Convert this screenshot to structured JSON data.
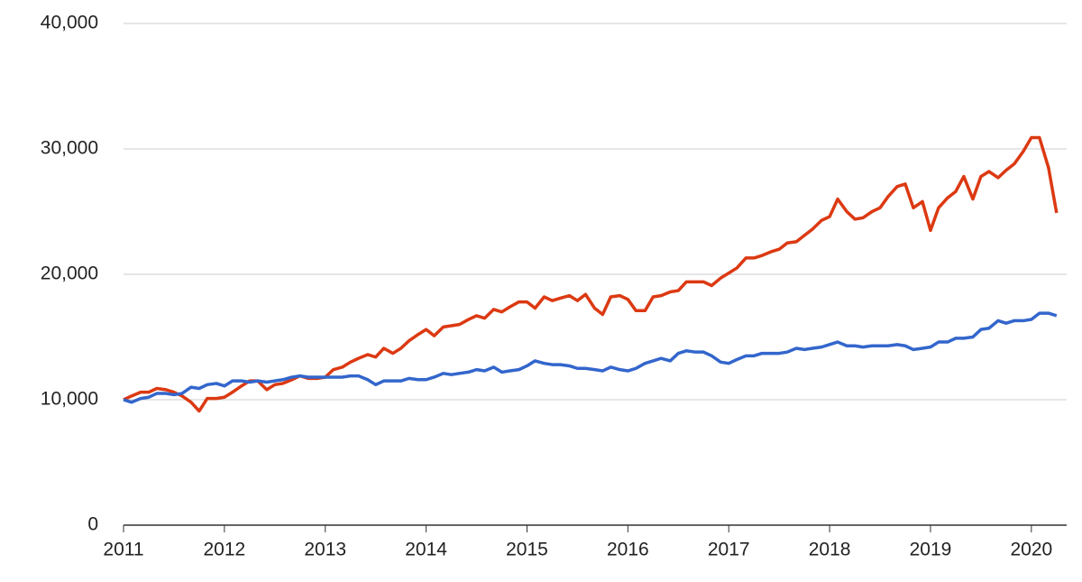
{
  "chart_data": {
    "type": "line",
    "x": [
      2011.0,
      2011.08,
      2011.17,
      2011.25,
      2011.33,
      2011.42,
      2011.5,
      2011.58,
      2011.67,
      2011.75,
      2011.83,
      2011.92,
      2012.0,
      2012.08,
      2012.17,
      2012.25,
      2012.33,
      2012.42,
      2012.5,
      2012.58,
      2012.67,
      2012.75,
      2012.83,
      2012.92,
      2013.0,
      2013.08,
      2013.17,
      2013.25,
      2013.33,
      2013.42,
      2013.5,
      2013.58,
      2013.67,
      2013.75,
      2013.83,
      2013.92,
      2014.0,
      2014.08,
      2014.17,
      2014.25,
      2014.33,
      2014.42,
      2014.5,
      2014.58,
      2014.67,
      2014.75,
      2014.83,
      2014.92,
      2015.0,
      2015.08,
      2015.17,
      2015.25,
      2015.33,
      2015.42,
      2015.5,
      2015.58,
      2015.67,
      2015.75,
      2015.83,
      2015.92,
      2016.0,
      2016.08,
      2016.17,
      2016.25,
      2016.33,
      2016.42,
      2016.5,
      2016.58,
      2016.67,
      2016.75,
      2016.83,
      2016.92,
      2017.0,
      2017.08,
      2017.17,
      2017.25,
      2017.33,
      2017.42,
      2017.5,
      2017.58,
      2017.67,
      2017.75,
      2017.83,
      2017.92,
      2018.0,
      2018.08,
      2018.17,
      2018.25,
      2018.33,
      2018.42,
      2018.5,
      2018.58,
      2018.67,
      2018.75,
      2018.83,
      2018.92,
      2019.0,
      2019.08,
      2019.17,
      2019.25,
      2019.33,
      2019.42,
      2019.5,
      2019.58,
      2019.67,
      2019.75,
      2019.83,
      2019.92,
      2020.0,
      2020.08,
      2020.17,
      2020.25
    ],
    "series": [
      {
        "color": "#dc3912",
        "values": [
          10000,
          10300,
          10600,
          10600,
          10900,
          10800,
          10600,
          10300,
          9800,
          9100,
          10100,
          10100,
          10200,
          10600,
          11100,
          11500,
          11500,
          10800,
          11200,
          11300,
          11600,
          11900,
          11700,
          11700,
          11800,
          12400,
          12600,
          13000,
          13300,
          13600,
          13400,
          14100,
          13700,
          14100,
          14700,
          15200,
          15600,
          15100,
          15800,
          15900,
          16000,
          16400,
          16700,
          16500,
          17200,
          17000,
          17400,
          17800,
          17800,
          17300,
          18200,
          17900,
          18100,
          18300,
          17900,
          18400,
          17300,
          16800,
          18200,
          18300,
          18000,
          17100,
          17100,
          18200,
          18300,
          18600,
          18700,
          19400,
          19400,
          19400,
          19100,
          19700,
          20100,
          20500,
          21300,
          21300,
          21500,
          21800,
          22000,
          22500,
          22600,
          23100,
          23600,
          24300,
          24600,
          26000,
          25000,
          24400,
          24500,
          25000,
          25300,
          26200,
          27000,
          27200,
          25300,
          25800,
          23500,
          25300,
          26100,
          26600,
          27800,
          26000,
          27800,
          28200,
          27700,
          28300,
          28800,
          29800,
          30900,
          30900,
          28500,
          24900
        ]
      },
      {
        "color": "#3366cc",
        "values": [
          10000,
          9800,
          10100,
          10200,
          10500,
          10500,
          10400,
          10500,
          11000,
          10900,
          11200,
          11300,
          11100,
          11500,
          11500,
          11400,
          11500,
          11400,
          11500,
          11600,
          11800,
          11900,
          11800,
          11800,
          11800,
          11800,
          11800,
          11900,
          11900,
          11600,
          11200,
          11500,
          11500,
          11500,
          11700,
          11600,
          11600,
          11800,
          12100,
          12000,
          12100,
          12200,
          12400,
          12300,
          12600,
          12200,
          12300,
          12400,
          12700,
          13100,
          12900,
          12800,
          12800,
          12700,
          12500,
          12500,
          12400,
          12300,
          12600,
          12400,
          12300,
          12500,
          12900,
          13100,
          13300,
          13100,
          13700,
          13900,
          13800,
          13800,
          13500,
          13000,
          12900,
          13200,
          13500,
          13500,
          13700,
          13700,
          13700,
          13800,
          14100,
          14000,
          14100,
          14200,
          14400,
          14600,
          14300,
          14300,
          14200,
          14300,
          14300,
          14300,
          14400,
          14300,
          14000,
          14100,
          14200,
          14600,
          14600,
          14900,
          14900,
          15000,
          15600,
          15700,
          16300,
          16100,
          16300,
          16300,
          16400,
          16900,
          16900,
          16700
        ]
      }
    ],
    "xlim": [
      2011,
      2020.35
    ],
    "xticks": [
      2011,
      2012,
      2013,
      2014,
      2015,
      2016,
      2017,
      2018,
      2019,
      2020
    ],
    "ylim": [
      0,
      40000
    ],
    "yticks": [
      0,
      {
        "value": 10000,
        "label": "10,000"
      },
      {
        "value": 20000,
        "label": "20,000"
      },
      {
        "value": 30000,
        "label": "30,000"
      },
      {
        "value": 40000,
        "label": "40,000"
      }
    ],
    "grid": true
  }
}
